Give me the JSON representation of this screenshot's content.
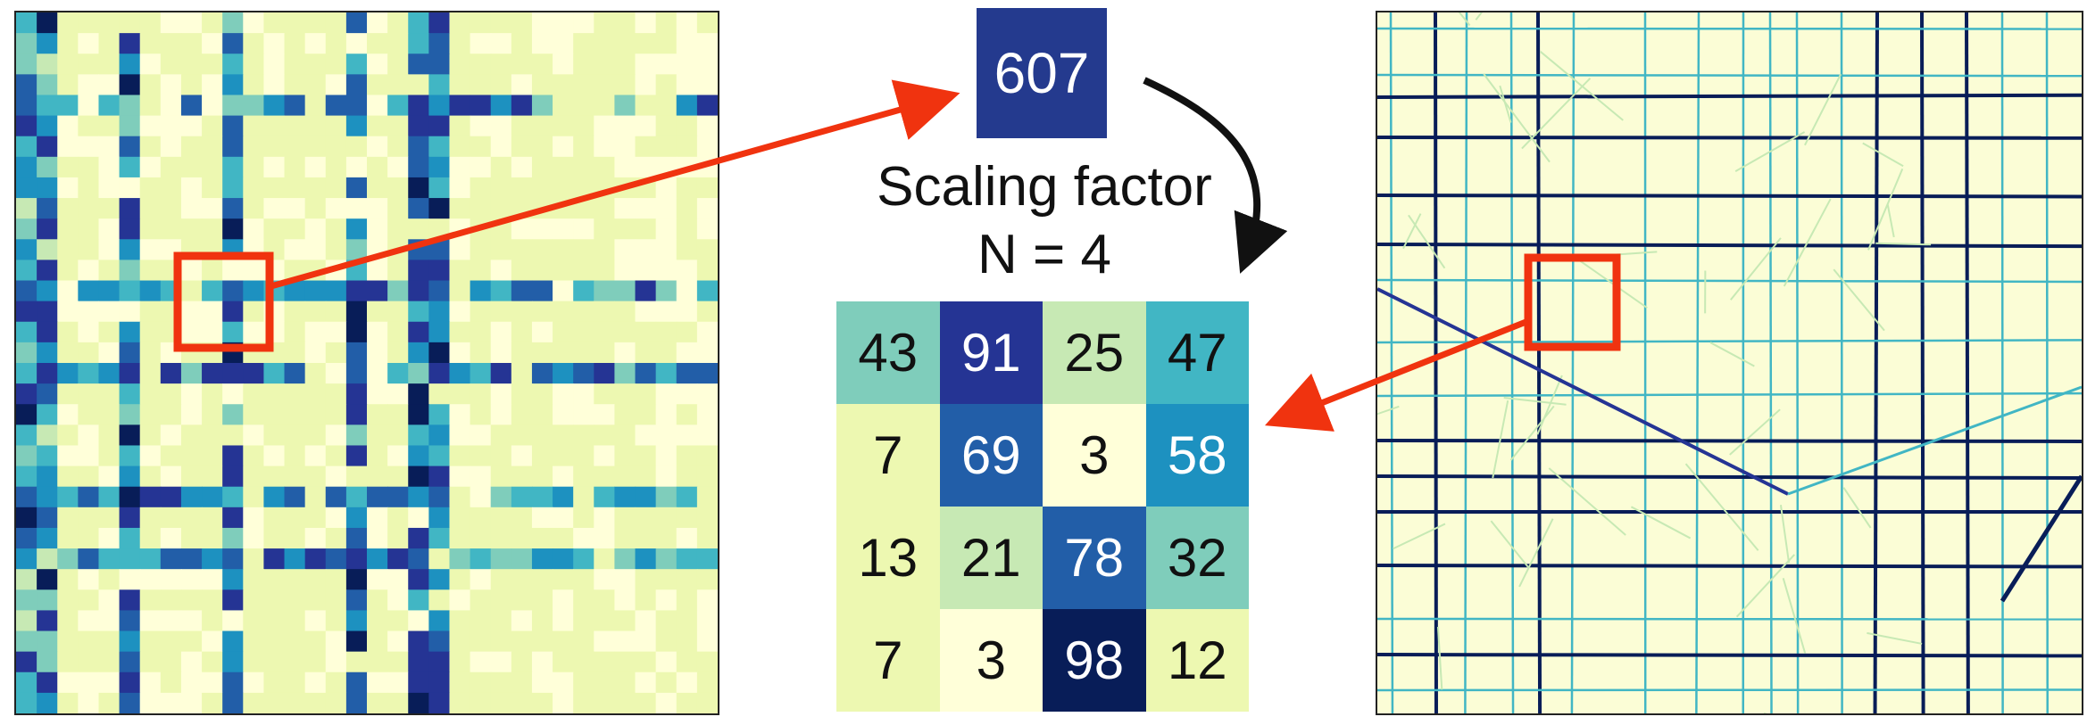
{
  "sum_value": "607",
  "caption": {
    "line1": "Scaling factor",
    "line2": "N = 4"
  },
  "grid_values": [
    [
      43,
      91,
      25,
      47
    ],
    [
      7,
      69,
      3,
      58
    ],
    [
      13,
      21,
      78,
      32
    ],
    [
      7,
      3,
      98,
      12
    ]
  ],
  "colors": {
    "arrow": "#f0330f",
    "highlight_box": "#f0330f",
    "curved_arrow": "#111111",
    "sum_cell_bg": "#243a8e",
    "map_background": "#fbfdd6",
    "colormap": [
      "#ffffd9",
      "#edf8b1",
      "#c7e9b4",
      "#7fcdbb",
      "#41b6c4",
      "#1d91c0",
      "#225ea8",
      "#253494",
      "#081d58"
    ]
  }
}
